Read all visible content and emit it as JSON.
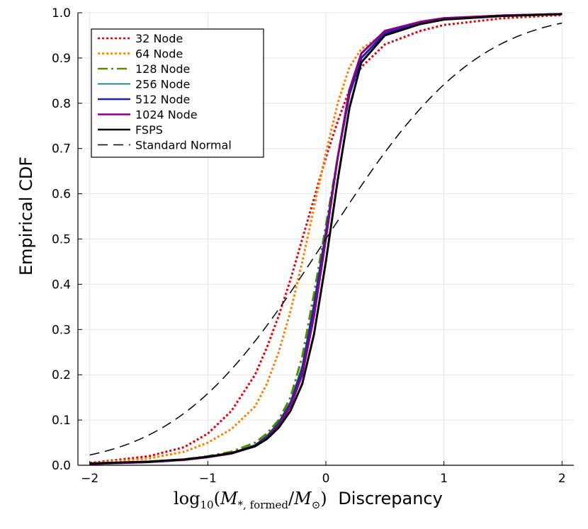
{
  "chart_data": {
    "type": "line",
    "title": "",
    "xlabel_math": "log10(M*,formed/M⊙)",
    "xlabel_math_parts": {
      "func": "log",
      "func_sub": "10",
      "open": "(",
      "num": "M",
      "num_sub": "*, formed",
      "slash": "/",
      "den": "M",
      "den_sub": "⊙",
      "close": ")"
    },
    "xlabel_text": "Discrepancy",
    "ylabel": "Empirical CDF",
    "xlim": [
      -2.1,
      2.1
    ],
    "ylim": [
      0,
      1.0
    ],
    "xticks": [
      -2,
      -1,
      0,
      1,
      2
    ],
    "xtick_labels": [
      "−2",
      "−1",
      "0",
      "1",
      "2"
    ],
    "yticks": [
      0,
      0.1,
      0.2,
      0.3,
      0.4,
      0.5,
      0.6,
      0.7,
      0.8,
      0.9,
      1.0
    ],
    "ytick_labels": [
      "0.0",
      "0.1",
      "0.2",
      "0.3",
      "0.4",
      "0.5",
      "0.6",
      "0.7",
      "0.8",
      "0.9",
      "1.0"
    ],
    "grid": true,
    "legend_position": "top-left",
    "series": [
      {
        "name": "32 Node",
        "color": "#e8000b",
        "dash": "dotted",
        "width": 3,
        "x": [
          -2,
          -1.5,
          -1.2,
          -1.0,
          -0.8,
          -0.6,
          -0.5,
          -0.4,
          -0.3,
          -0.2,
          -0.1,
          0,
          0.1,
          0.2,
          0.3,
          0.5,
          0.8,
          1.0,
          1.5,
          2.0
        ],
        "y": [
          0.005,
          0.02,
          0.04,
          0.07,
          0.12,
          0.2,
          0.26,
          0.33,
          0.41,
          0.5,
          0.59,
          0.68,
          0.76,
          0.83,
          0.88,
          0.93,
          0.96,
          0.973,
          0.988,
          0.995
        ]
      },
      {
        "name": "64 Node",
        "color": "#ff7f00",
        "dash": "dotted",
        "width": 3,
        "x": [
          -2,
          -1.5,
          -1.2,
          -1.0,
          -0.8,
          -0.6,
          -0.5,
          -0.4,
          -0.3,
          -0.2,
          -0.1,
          0,
          0.1,
          0.2,
          0.3,
          0.5,
          0.8,
          1.0,
          1.5,
          2.0
        ],
        "y": [
          0.004,
          0.015,
          0.03,
          0.05,
          0.08,
          0.13,
          0.18,
          0.25,
          0.34,
          0.45,
          0.57,
          0.69,
          0.8,
          0.88,
          0.92,
          0.955,
          0.975,
          0.985,
          0.993,
          0.997
        ]
      },
      {
        "name": "128 Node",
        "color": "#5a8a00",
        "dash": "dashdot",
        "width": 3,
        "x": [
          -2,
          -1.5,
          -1.2,
          -1.0,
          -0.8,
          -0.6,
          -0.5,
          -0.4,
          -0.3,
          -0.2,
          -0.1,
          0,
          0.1,
          0.2,
          0.3,
          0.5,
          0.8,
          1.0,
          1.5,
          2.0
        ],
        "y": [
          0.003,
          0.008,
          0.013,
          0.02,
          0.03,
          0.05,
          0.07,
          0.1,
          0.15,
          0.24,
          0.38,
          0.53,
          0.68,
          0.82,
          0.9,
          0.955,
          0.978,
          0.987,
          0.994,
          0.997
        ]
      },
      {
        "name": "256 Node",
        "color": "#005f5f",
        "dash": "solid",
        "width": 2,
        "x": [
          -2,
          -1.5,
          -1.2,
          -1.0,
          -0.8,
          -0.6,
          -0.5,
          -0.4,
          -0.3,
          -0.2,
          -0.1,
          0,
          0.1,
          0.2,
          0.3,
          0.5,
          0.8,
          1.0,
          1.5,
          2.0
        ],
        "y": [
          0.003,
          0.007,
          0.012,
          0.018,
          0.027,
          0.045,
          0.065,
          0.095,
          0.14,
          0.22,
          0.36,
          0.52,
          0.68,
          0.82,
          0.9,
          0.955,
          0.978,
          0.987,
          0.994,
          0.997
        ]
      },
      {
        "name": "512 Node",
        "color": "#1f1fb4",
        "dash": "solid",
        "width": 3,
        "x": [
          -2,
          -1.5,
          -1.2,
          -1.0,
          -0.8,
          -0.6,
          -0.5,
          -0.4,
          -0.3,
          -0.2,
          -0.1,
          0,
          0.1,
          0.2,
          0.3,
          0.5,
          0.8,
          1.0,
          1.5,
          2.0
        ],
        "y": [
          0.003,
          0.007,
          0.012,
          0.018,
          0.026,
          0.043,
          0.062,
          0.09,
          0.135,
          0.21,
          0.35,
          0.51,
          0.68,
          0.82,
          0.9,
          0.955,
          0.978,
          0.987,
          0.994,
          0.997
        ]
      },
      {
        "name": "1024 Node",
        "color": "#8b008b",
        "dash": "solid",
        "width": 3,
        "x": [
          -2,
          -1.5,
          -1.2,
          -1.0,
          -0.8,
          -0.6,
          -0.5,
          -0.4,
          -0.3,
          -0.2,
          -0.1,
          0,
          0.1,
          0.2,
          0.3,
          0.5,
          0.8,
          1.0,
          1.5,
          2.0
        ],
        "y": [
          0.003,
          0.007,
          0.012,
          0.018,
          0.026,
          0.042,
          0.06,
          0.088,
          0.13,
          0.2,
          0.33,
          0.5,
          0.68,
          0.83,
          0.91,
          0.96,
          0.98,
          0.988,
          0.994,
          0.997
        ]
      },
      {
        "name": "FSPS",
        "color": "#000000",
        "dash": "solid",
        "width": 3,
        "x": [
          -2,
          -1.5,
          -1.2,
          -1.0,
          -0.8,
          -0.6,
          -0.5,
          -0.4,
          -0.3,
          -0.2,
          -0.1,
          0,
          0.1,
          0.2,
          0.3,
          0.5,
          0.8,
          1.0,
          1.5,
          2.0
        ],
        "y": [
          0.004,
          0.008,
          0.013,
          0.019,
          0.027,
          0.042,
          0.058,
          0.083,
          0.12,
          0.18,
          0.29,
          0.45,
          0.63,
          0.79,
          0.89,
          0.95,
          0.975,
          0.985,
          0.993,
          0.997
        ]
      },
      {
        "name": "Standard Normal",
        "color": "#000000",
        "dash": "dashed",
        "width": 1.5,
        "function": "normal_cdf",
        "x": [
          -2,
          -1.5,
          -1,
          -0.5,
          0,
          0.5,
          1,
          1.5,
          2
        ],
        "y": [
          0.0228,
          0.0668,
          0.1587,
          0.3085,
          0.5,
          0.6915,
          0.8413,
          0.9332,
          0.9772
        ]
      }
    ]
  }
}
